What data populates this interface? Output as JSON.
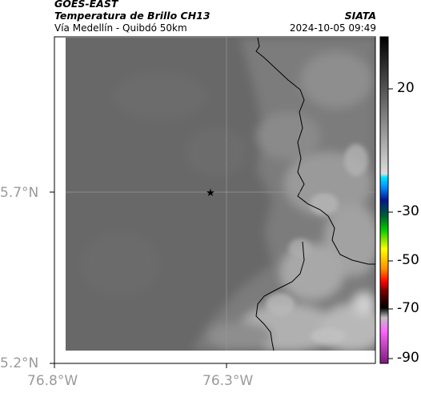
{
  "header": {
    "satellite": "GOES-EAST",
    "product": "Temperatura de Brillo CH13",
    "region": "Vía Medellín - Quibdó 50km",
    "agency": "SIATA",
    "datetime": "2024-10-05 09:49"
  },
  "axes": {
    "lat_ticks": [
      "5.7°N",
      "5.2°N"
    ],
    "lon_ticks": [
      "76.8°W",
      "76.3°W"
    ]
  },
  "colorbar": {
    "tick_labels": [
      "20",
      "-30",
      "-50",
      "-70",
      "-90"
    ]
  },
  "marker": {
    "symbol": "star-icon"
  },
  "colors": {
    "background_gray": "#686868",
    "cloud_light": "#b4b4b4",
    "border_line": "#000000"
  }
}
